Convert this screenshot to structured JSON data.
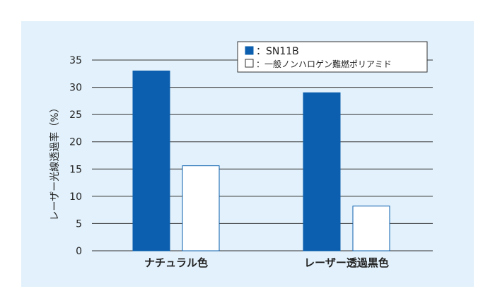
{
  "chart_data": {
    "type": "bar",
    "categories": [
      "ナチュラル色",
      "レーザー透過黒色"
    ],
    "series": [
      {
        "name": "SN11B",
        "values": [
          33,
          29
        ],
        "color": "#0b5fae"
      },
      {
        "name": "一般ノンハロゲン難燃ポリアミド",
        "values": [
          15.6,
          8.2
        ],
        "color": "#ffffff"
      }
    ],
    "legend_labels": [
      "：SN11B",
      "：一般ノンハロゲン難燃ポリアミド"
    ],
    "ylabel": "レーザー光線透過率（%）",
    "ylim": [
      0,
      35
    ],
    "yticks": [
      0,
      5,
      10,
      15,
      20,
      25,
      30,
      35
    ],
    "grid": true,
    "legend_position": "top-right",
    "colors": {
      "background": "#e2f1fb",
      "bar_primary": "#0b5fae",
      "bar_outline": "#0b5fae",
      "grid": "#333333"
    }
  }
}
